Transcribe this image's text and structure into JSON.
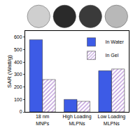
{
  "chart_data": {
    "type": "bar",
    "categories": [
      "18 nm MNPs",
      "High Loading MLPNs",
      "Low Loading MLPNs"
    ],
    "series": [
      {
        "name": "In Water",
        "color": "#3d5be6",
        "values": [
          580,
          100,
          330
        ]
      },
      {
        "name": "In Gel",
        "color": "#7a3ea6",
        "values": [
          260,
          85,
          345
        ]
      }
    ],
    "y_label": "SAR (Watt/g)",
    "ylim": [
      0,
      650
    ],
    "yticks": [
      0,
      100,
      200,
      300,
      400,
      500,
      600
    ],
    "legend": "upper right",
    "grid": false
  }
}
